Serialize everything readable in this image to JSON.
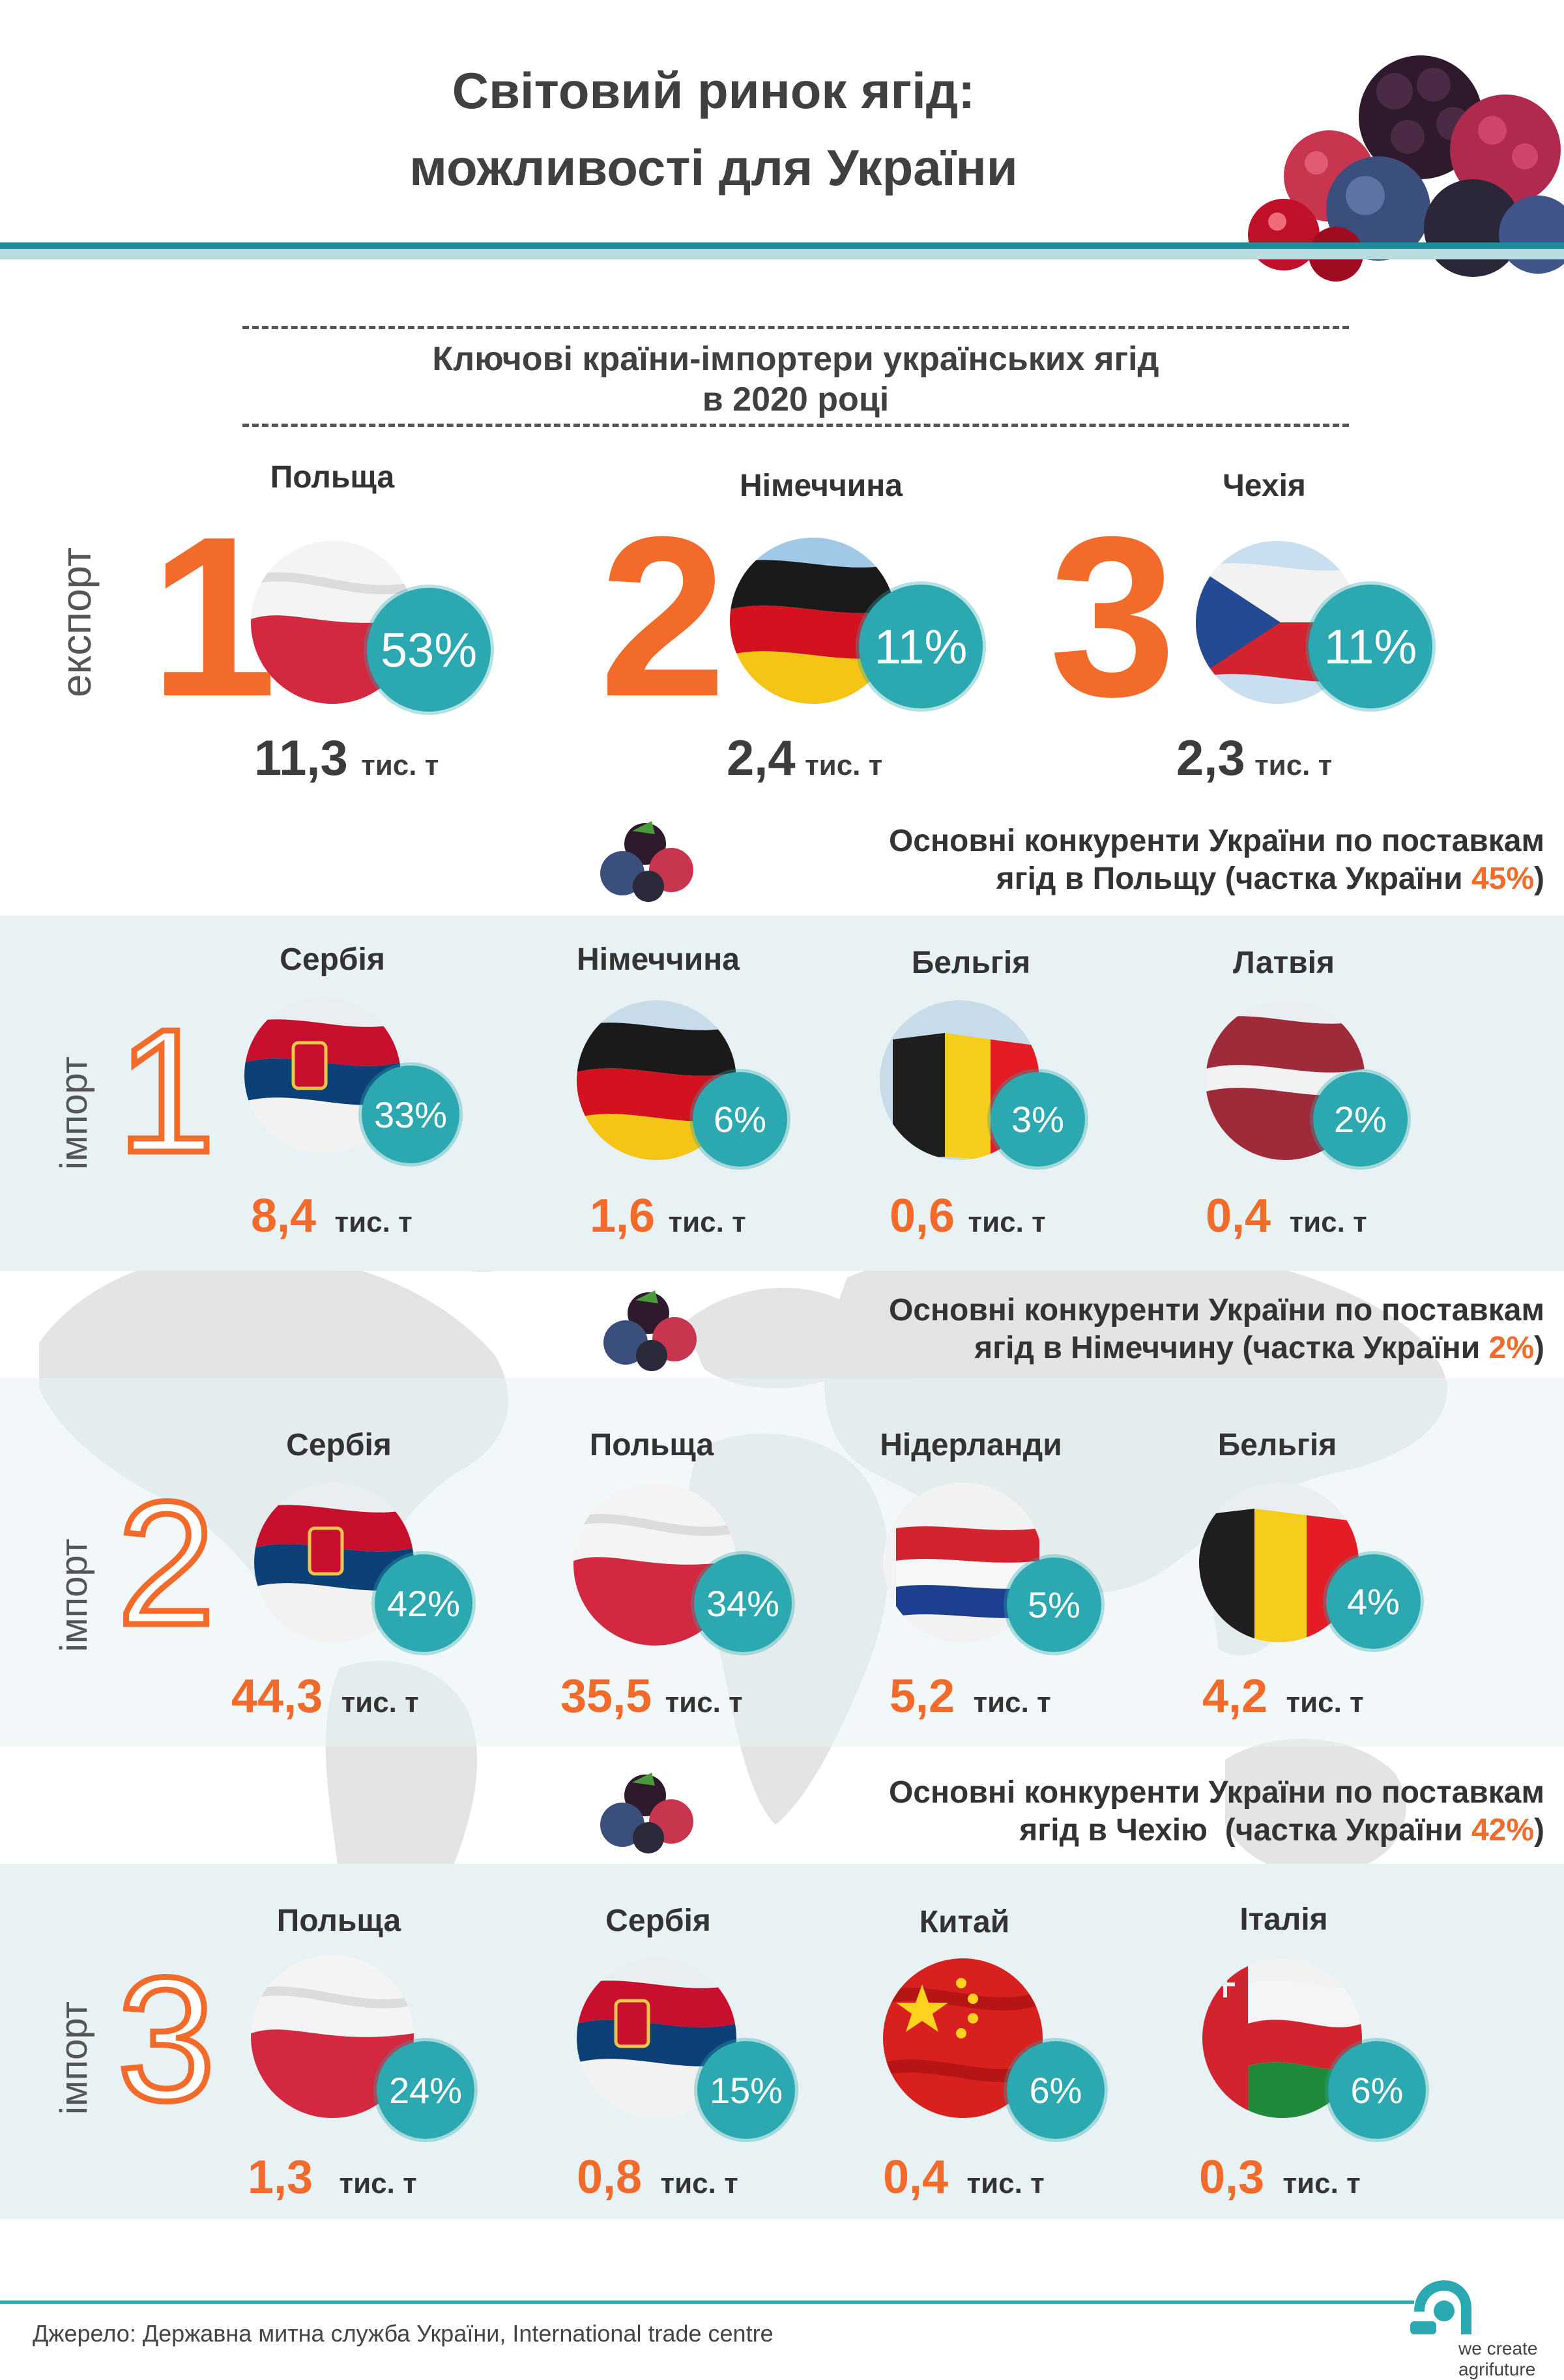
{
  "header": {
    "title_line1": "Світовий ринок ягід:",
    "title_line2": "можливості для України"
  },
  "export_section": {
    "title_line1": "Ключові країни-імпортери українських ягід",
    "title_line2": "в 2020 році",
    "side_label": "експорт",
    "items": [
      {
        "rank": "1",
        "country": "Польща",
        "share": "53%",
        "value": "11,3",
        "unit": "тис. т"
      },
      {
        "rank": "2",
        "country": "Німеччина",
        "share": "11%",
        "value": "2,4",
        "unit": "тис. т"
      },
      {
        "rank": "3",
        "country": "Чехія",
        "share": "11%",
        "value": "2,3",
        "unit": "тис. т"
      }
    ]
  },
  "import_sections": [
    {
      "head_line1": "Основні конкуренти України по поставкам",
      "head_line2a": "ягід в Польщу (частка України ",
      "head_share": "45%",
      "head_close": ")",
      "side_label": "імпорт",
      "rank": "1",
      "items": [
        {
          "country": "Сербія",
          "share": "33%",
          "value": "8,4",
          "unit": "тис. т"
        },
        {
          "country": "Німеччина",
          "share": "6%",
          "value": "1,6",
          "unit": "тис. т"
        },
        {
          "country": "Бельгія",
          "share": "3%",
          "value": "0,6",
          "unit": "тис. т"
        },
        {
          "country": "Латвія",
          "share": "2%",
          "value": "0,4",
          "unit": "тис. т"
        }
      ]
    },
    {
      "head_line1": "Основні конкуренти України по поставкам",
      "head_line2a": "ягід в Німеччину (частка України ",
      "head_share": "2%",
      "head_close": ")",
      "side_label": "імпорт",
      "rank": "2",
      "items": [
        {
          "country": "Сербія",
          "share": "42%",
          "value": "44,3",
          "unit": "тис. т"
        },
        {
          "country": "Польща",
          "share": "34%",
          "value": "35,5",
          "unit": "тис. т"
        },
        {
          "country": "Нідерланди",
          "share": "5%",
          "value": "5,2",
          "unit": "тис. т"
        },
        {
          "country": "Бельгія",
          "share": "4%",
          "value": "4,2",
          "unit": "тис. т"
        }
      ]
    },
    {
      "head_line1": "Основні конкуренти України по поставкам",
      "head_line2a": "ягід в Чехію  (частка України ",
      "head_share": "42%",
      "head_close": ")",
      "side_label": "імпорт",
      "rank": "3",
      "items": [
        {
          "country": "Польща",
          "share": "24%",
          "value": "1,3",
          "unit": "тис. т"
        },
        {
          "country": "Сербія",
          "share": "15%",
          "value": "0,8",
          "unit": "тис. т"
        },
        {
          "country": "Китай",
          "share": "6%",
          "value": "0,4",
          "unit": "тис. т"
        },
        {
          "country": "Італія",
          "share": "6%",
          "value": "0,3",
          "unit": "тис. т"
        }
      ]
    }
  ],
  "footer": {
    "source": "Джерело: Державна митна служба України, International trade centre",
    "logo_line1": "we create",
    "logo_line2": "agrifuture"
  },
  "colors": {
    "accent_orange": "#f26b2a",
    "teal": "#2ba8b0",
    "band": "#e8f2f4"
  }
}
